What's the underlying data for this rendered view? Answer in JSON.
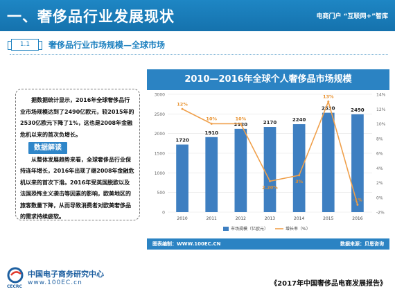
{
  "header": {
    "title": "一、奢侈品行业发展现状",
    "right_text": "电商门户 “互联网+”智库"
  },
  "section": {
    "number": "1.1",
    "title": "奢侈品行业市场规模—全球市场"
  },
  "textbox": {
    "para1": "据数据统计显示，2016年全球奢侈品行业市场规模达到了2490亿欧元，较2015年的2530亿欧元下降了1%，这也是2008年金融危机以来的首次负增长。",
    "callout": "数据解读",
    "para2": "从整体发展趋势来看，全球奢侈品行业保持连年增长，2016年出现了继2008年金融危机以来的首次下滑。2016年受英国脱欧以及法国恐怖主义袭击等因素的影响，欧美地区的旅客数量下降，从而导致消费者对欧美奢侈品的需求持续疲软。"
  },
  "chart_footer": {
    "left": "图表编制：WWW.100EC.CN",
    "right": "数据来源：贝恩咨询"
  },
  "colors": {
    "header_blue": "#1e86c4",
    "bar_blue": "#3e7fc1",
    "line_orange": "#f0a04b",
    "label_orange": "#e8912e"
  },
  "chart_data": {
    "type": "bar",
    "title": "2010—2016年全球个人奢侈品市场规模",
    "categories": [
      "2010",
      "2011",
      "2012",
      "2013",
      "2014",
      "2015",
      "2016"
    ],
    "series": [
      {
        "name": "市场规模（亿欧元）",
        "type": "bar",
        "axis": "left",
        "values": [
          1720,
          1910,
          2120,
          2170,
          2240,
          2530,
          2490
        ]
      },
      {
        "name": "增长率（%）",
        "type": "line",
        "axis": "right",
        "values": [
          12,
          10,
          10,
          2.2,
          3,
          13,
          -1
        ],
        "labels": [
          "12%",
          "10%",
          "10%",
          "2.20%",
          "3%",
          "13%",
          "-1%"
        ]
      }
    ],
    "yleft": {
      "ticks": [
        0,
        500,
        1000,
        1500,
        2000,
        2500,
        3000
      ],
      "lim": [
        0,
        3000
      ]
    },
    "yright": {
      "ticks": [
        -2,
        0,
        2,
        4,
        6,
        8,
        10,
        12,
        14
      ],
      "tick_labels": [
        "-2%",
        "0%",
        "2%",
        "4%",
        "6%",
        "8%",
        "10%",
        "12%",
        "14%"
      ],
      "lim": [
        -2,
        14
      ]
    },
    "legend_position": "bottom",
    "grid": true
  },
  "brand": {
    "name": "中国电子商务研究中心",
    "url": "www.100EC.cn",
    "abbr": "CECRC"
  },
  "report_title": "《2017年中国奢侈品电商发展报告》"
}
